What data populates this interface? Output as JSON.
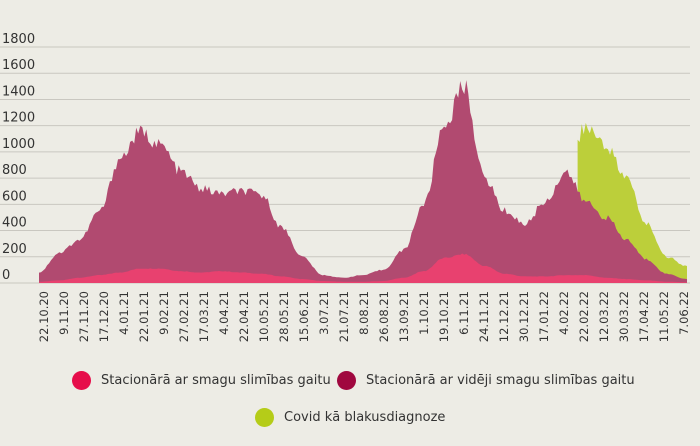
{
  "chart_data": {
    "type": "area",
    "stacked": true,
    "title": "",
    "xlabel": "",
    "ylabel": "",
    "ylim": [
      0,
      1800
    ],
    "yticks": [
      0,
      200,
      400,
      600,
      800,
      1000,
      1200,
      1400,
      1600,
      1800
    ],
    "grid": true,
    "legend_position": "bottom",
    "categories": [
      "22.10.20",
      "9.11.20",
      "27.11.20",
      "17.12.20",
      "4.01.21",
      "22.01.21",
      "9.02.21",
      "27.02.21",
      "17.03.21",
      "4.04.21",
      "22.04.21",
      "10.05.21",
      "28.05.21",
      "15.06.21",
      "3.07.21",
      "21.07.21",
      "8.08.21",
      "26.08.21",
      "13.09.21",
      "1.10.21",
      "19.10.21",
      "6.11.21",
      "24.11.21",
      "12.12.21",
      "30.12.21",
      "17.01.22",
      "4.02.22",
      "22.02.22",
      "12.03.22",
      "30.03.22",
      "17.04.22",
      "11.05.22",
      "7.06.22"
    ],
    "series": [
      {
        "name": "Stacionārā ar smagu slimības gaitu",
        "color": "#e60d4a",
        "area_color": "#e8416f",
        "values": [
          10,
          20,
          40,
          60,
          80,
          110,
          110,
          90,
          80,
          90,
          80,
          70,
          50,
          30,
          15,
          10,
          10,
          15,
          40,
          90,
          190,
          220,
          130,
          70,
          50,
          50,
          60,
          60,
          40,
          30,
          20,
          10,
          5
        ]
      },
      {
        "name": "Stacionārā ar vidēji smagu slimības gaitu",
        "color": "#a0083f",
        "area_color": "#b14a70",
        "values": [
          70,
          210,
          290,
          490,
          870,
          1040,
          940,
          760,
          640,
          590,
          620,
          600,
          370,
          170,
          45,
          30,
          50,
          85,
          210,
          510,
          1010,
          1280,
          670,
          480,
          400,
          570,
          790,
          560,
          460,
          300,
          160,
          60,
          25
        ]
      },
      {
        "name": "Covid kā blakusdiagnoze",
        "color": "#b5cc18",
        "area_color": "#bccf3a",
        "values": [
          0,
          0,
          0,
          0,
          0,
          0,
          0,
          0,
          0,
          0,
          0,
          0,
          0,
          0,
          0,
          0,
          0,
          0,
          0,
          0,
          0,
          0,
          0,
          0,
          0,
          0,
          0,
          580,
          550,
          470,
          270,
          130,
          100
        ]
      }
    ]
  }
}
